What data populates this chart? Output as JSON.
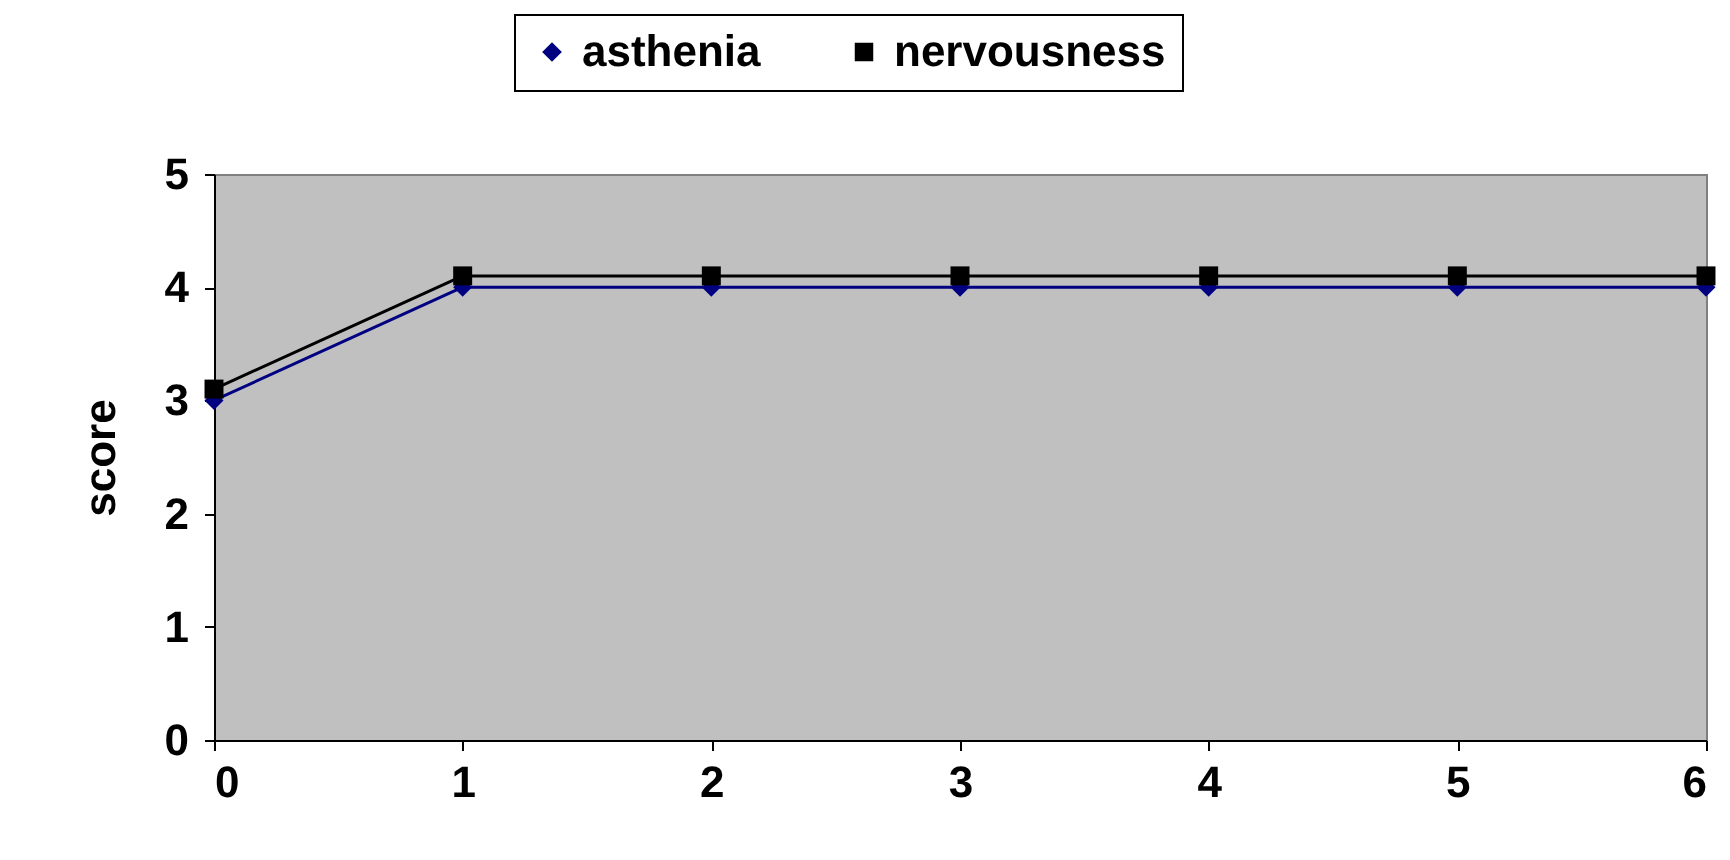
{
  "chart_data": {
    "type": "line",
    "ylabel": "score",
    "x": [
      0,
      1,
      2,
      3,
      4,
      5,
      6
    ],
    "series": [
      {
        "name": "asthenia",
        "color": "#000080",
        "marker": "diamond",
        "values": [
          3,
          4,
          4,
          4,
          4,
          4,
          4
        ]
      },
      {
        "name": "nervousness",
        "color": "#000000",
        "marker": "square",
        "values": [
          3.1,
          4.1,
          4.1,
          4.1,
          4.1,
          4.1,
          4.1
        ]
      }
    ],
    "xlim": [
      0,
      6
    ],
    "xticks": [
      0,
      1,
      2,
      3,
      4,
      5,
      6
    ],
    "ylim": [
      0,
      5
    ],
    "yticks": [
      0,
      1,
      2,
      3,
      4,
      5
    ],
    "grid": false,
    "legend": "top",
    "line_style": "solid"
  }
}
